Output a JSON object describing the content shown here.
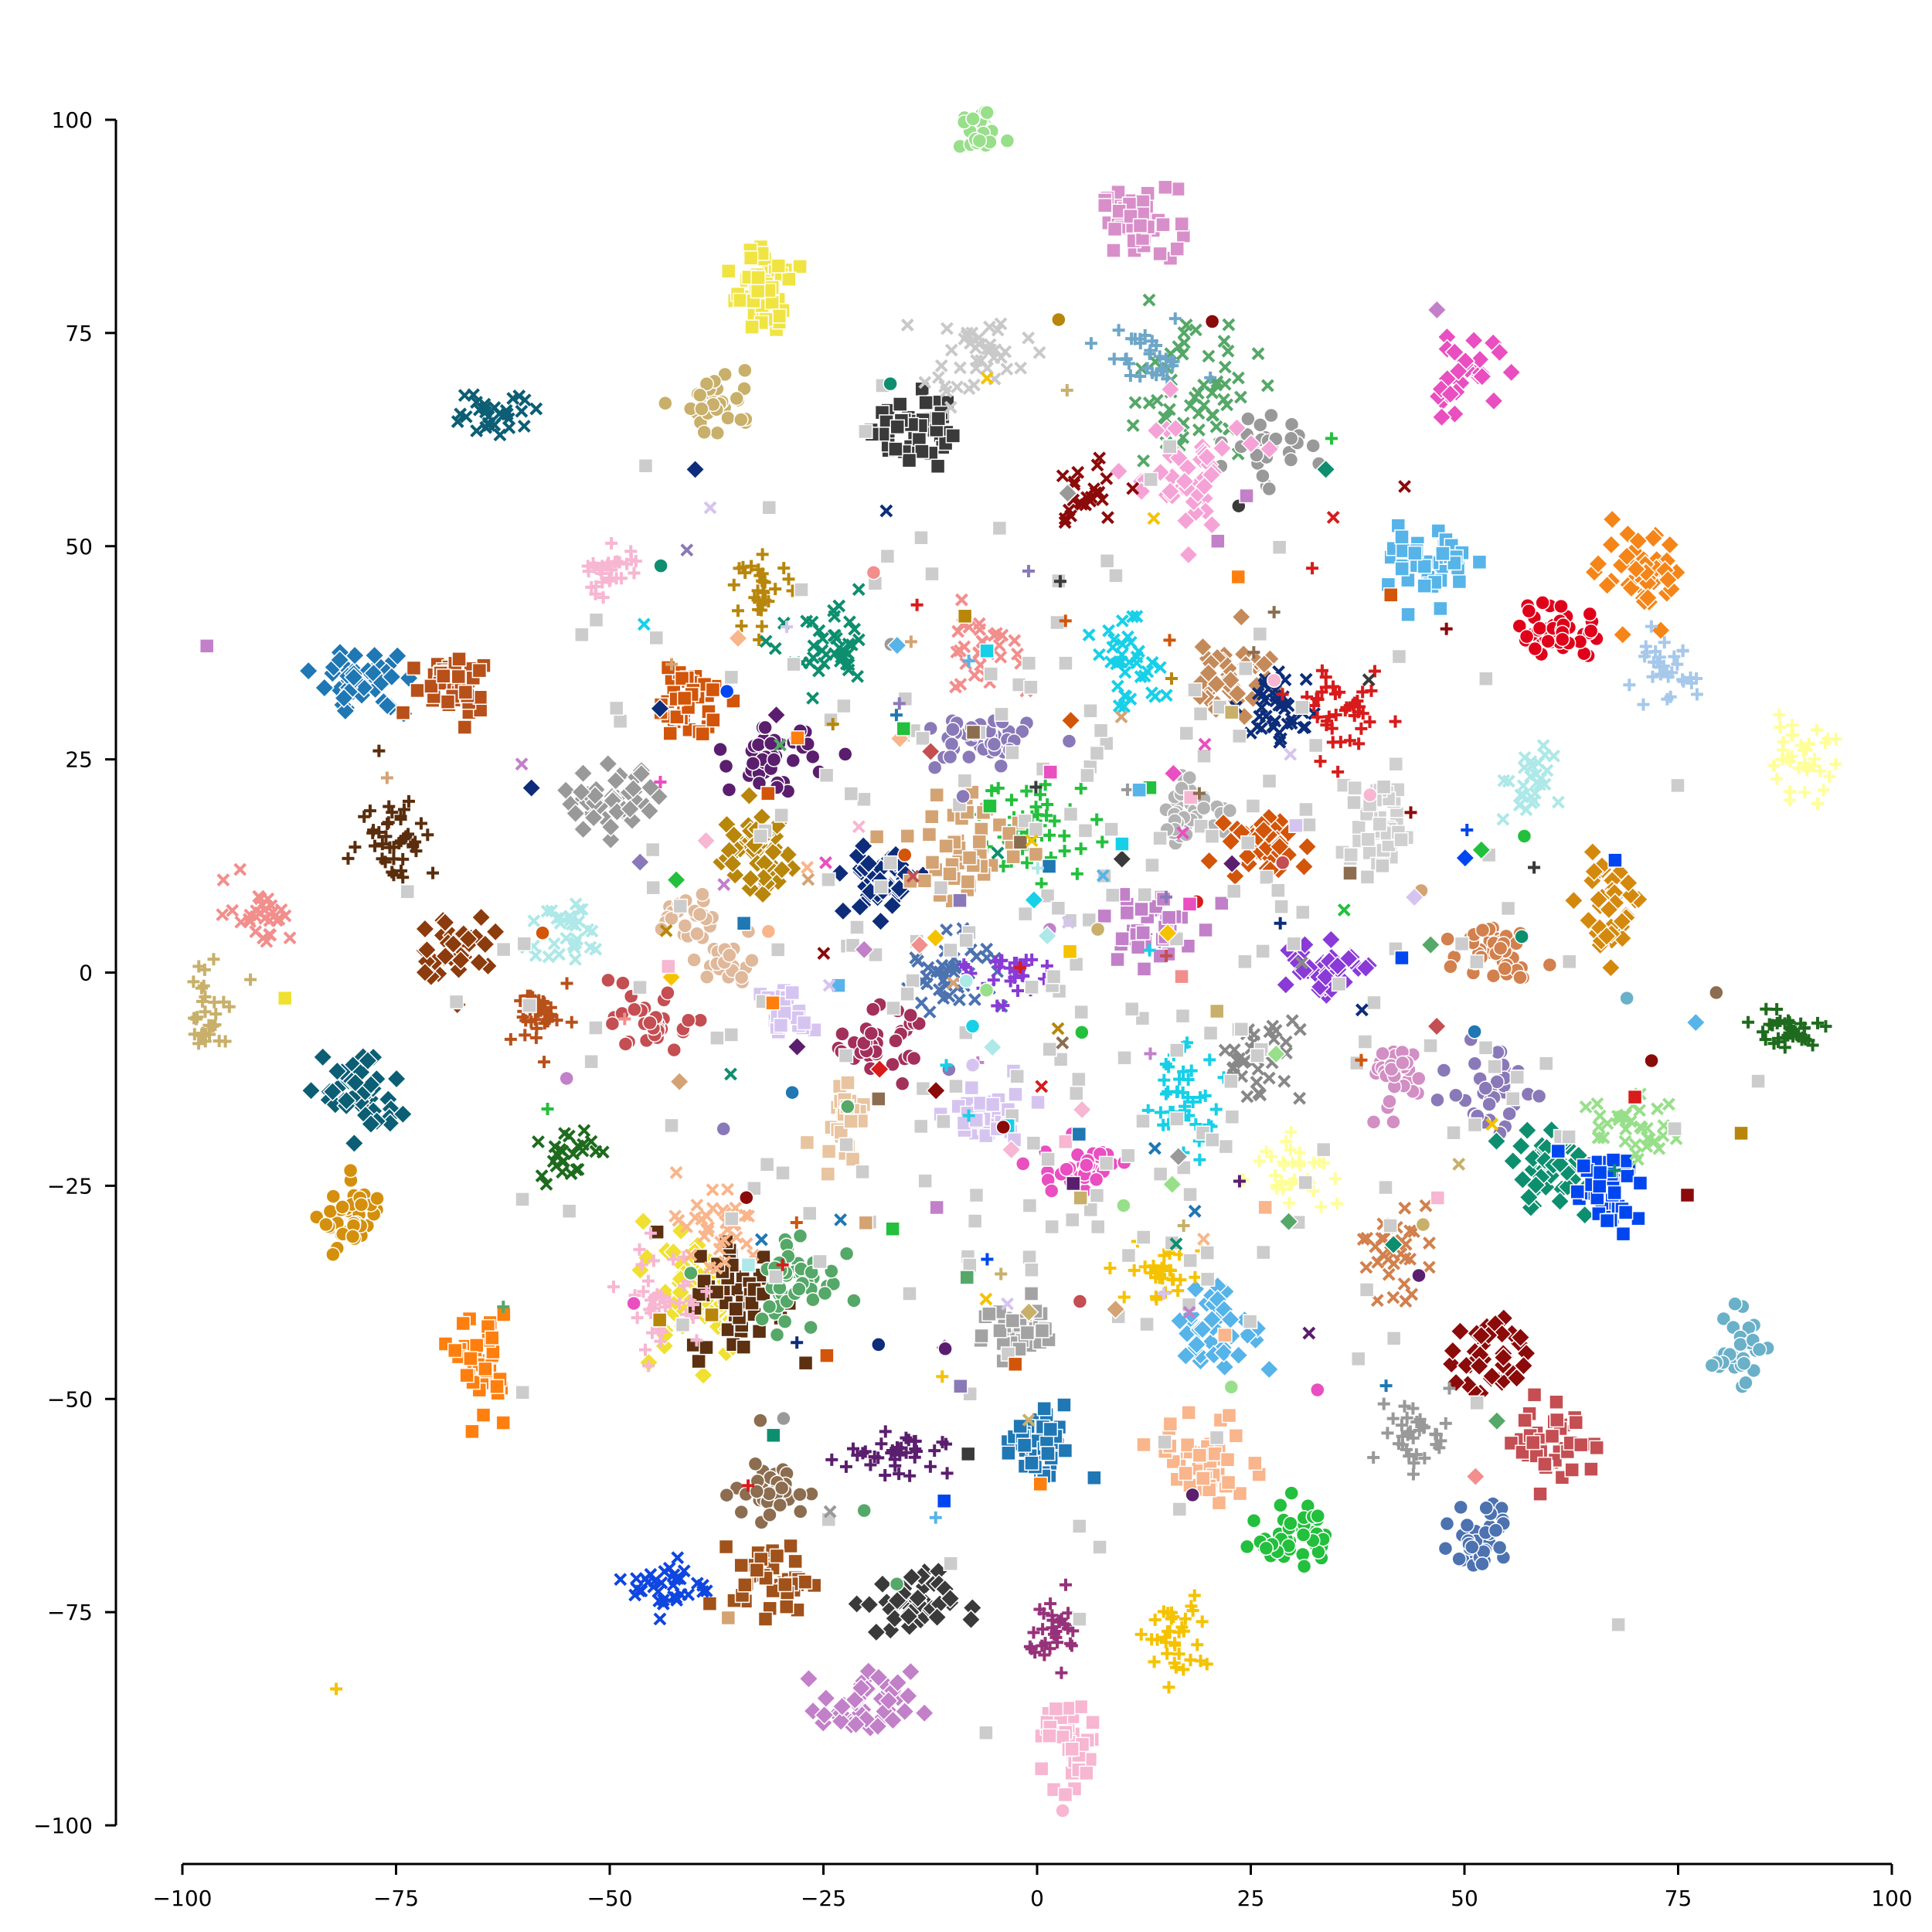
{
  "chart_data": {
    "type": "scatter",
    "title": "",
    "xlabel": "",
    "ylabel": "",
    "xlim": [
      -100,
      100
    ],
    "ylim": [
      -100,
      100
    ],
    "x_ticks": [
      -100,
      -75,
      -50,
      -25,
      0,
      25,
      50,
      75,
      100
    ],
    "y_ticks": [
      -100,
      -75,
      -50,
      -25,
      0,
      25,
      50,
      75,
      100
    ],
    "x_tick_labels": [
      "−100",
      "−75",
      "−50",
      "−25",
      "0",
      "25",
      "50",
      "75",
      "100"
    ],
    "y_tick_labels": [
      "−100",
      "−75",
      "−50",
      "−25",
      "0",
      "25",
      "50",
      "75",
      "100"
    ],
    "grid": false,
    "legend": "none",
    "clusters": [
      {
        "x": -7,
        "y": 99,
        "sx": 1.6,
        "sy": 1.4,
        "n": 40,
        "marker": "circle",
        "color": "#98df8a"
      },
      {
        "x": 12,
        "y": 88,
        "sx": 2.2,
        "sy": 2.0,
        "n": 45,
        "marker": "square",
        "color": "#d88fc9"
      },
      {
        "x": -32,
        "y": 80,
        "sx": 1.6,
        "sy": 2.4,
        "n": 50,
        "marker": "square",
        "color": "#f0e442"
      },
      {
        "x": -37,
        "y": 67,
        "sx": 2.0,
        "sy": 1.8,
        "n": 35,
        "marker": "circle",
        "color": "#c8b06b"
      },
      {
        "x": -63,
        "y": 66,
        "sx": 2.8,
        "sy": 1.5,
        "n": 30,
        "marker": "x",
        "color": "#0b5e74"
      },
      {
        "x": -15,
        "y": 64,
        "sx": 2.2,
        "sy": 2.4,
        "n": 45,
        "marker": "square",
        "color": "#3a3a3a"
      },
      {
        "x": -7,
        "y": 72,
        "sx": 3.0,
        "sy": 2.4,
        "n": 40,
        "marker": "x",
        "color": "#c9c9c9"
      },
      {
        "x": 18,
        "y": 68,
        "sx": 4.0,
        "sy": 4.0,
        "n": 55,
        "marker": "x",
        "color": "#55a868"
      },
      {
        "x": 13,
        "y": 72,
        "sx": 2.8,
        "sy": 2.0,
        "n": 30,
        "marker": "plus",
        "color": "#6ea6c7"
      },
      {
        "x": 27,
        "y": 62,
        "sx": 2.2,
        "sy": 2.0,
        "n": 30,
        "marker": "circle",
        "color": "#999999"
      },
      {
        "x": 17,
        "y": 58,
        "sx": 3.5,
        "sy": 3.5,
        "n": 45,
        "marker": "diamond",
        "color": "#f5a3d6"
      },
      {
        "x": 5,
        "y": 56,
        "sx": 2.4,
        "sy": 2.4,
        "n": 25,
        "marker": "x",
        "color": "#8b0a0a"
      },
      {
        "x": 50,
        "y": 70,
        "sx": 2.2,
        "sy": 2.0,
        "n": 30,
        "marker": "diamond",
        "color": "#e94fc0"
      },
      {
        "x": 46,
        "y": 48,
        "sx": 2.2,
        "sy": 2.0,
        "n": 45,
        "marker": "square",
        "color": "#56b4e9"
      },
      {
        "x": 61,
        "y": 40,
        "sx": 2.5,
        "sy": 1.6,
        "n": 45,
        "marker": "circle",
        "color": "#e0001a"
      },
      {
        "x": 71,
        "y": 46,
        "sx": 2.5,
        "sy": 2.5,
        "n": 45,
        "marker": "diamond",
        "color": "#f58518"
      },
      {
        "x": 73,
        "y": 35,
        "sx": 2.0,
        "sy": 2.0,
        "n": 30,
        "marker": "plus",
        "color": "#a6c8ea"
      },
      {
        "x": 89,
        "y": 25,
        "sx": 2.2,
        "sy": 2.0,
        "n": 35,
        "marker": "plus",
        "color": "#ffff99"
      },
      {
        "x": -50,
        "y": 47,
        "sx": 1.8,
        "sy": 1.6,
        "n": 30,
        "marker": "plus",
        "color": "#f7b6d2"
      },
      {
        "x": -32,
        "y": 45,
        "sx": 1.6,
        "sy": 1.8,
        "n": 30,
        "marker": "plus",
        "color": "#b8860b"
      },
      {
        "x": -79,
        "y": 34,
        "sx": 2.6,
        "sy": 1.8,
        "n": 45,
        "marker": "diamond",
        "color": "#1f77b4"
      },
      {
        "x": -68,
        "y": 34,
        "sx": 2.6,
        "sy": 2.0,
        "n": 45,
        "marker": "square",
        "color": "#b8501a"
      },
      {
        "x": -75,
        "y": 16,
        "sx": 2.2,
        "sy": 2.4,
        "n": 40,
        "marker": "plus",
        "color": "#5a2d0c"
      },
      {
        "x": -91,
        "y": 7,
        "sx": 2.0,
        "sy": 1.8,
        "n": 30,
        "marker": "x",
        "color": "#f28e8c"
      },
      {
        "x": -68,
        "y": 3,
        "sx": 2.2,
        "sy": 2.0,
        "n": 40,
        "marker": "diamond",
        "color": "#8c3b0c"
      },
      {
        "x": -97,
        "y": -5,
        "sx": 2.0,
        "sy": 2.4,
        "n": 35,
        "marker": "plus",
        "color": "#c8b06b"
      },
      {
        "x": -79,
        "y": -14,
        "sx": 2.2,
        "sy": 2.6,
        "n": 45,
        "marker": "diamond",
        "color": "#0b5e74"
      },
      {
        "x": -80,
        "y": -29,
        "sx": 1.8,
        "sy": 2.2,
        "n": 40,
        "marker": "circle",
        "color": "#d4900d"
      },
      {
        "x": -65,
        "y": -46,
        "sx": 1.4,
        "sy": 2.8,
        "n": 40,
        "marker": "square",
        "color": "#ff7f0e"
      },
      {
        "x": -41,
        "y": 32,
        "sx": 2.0,
        "sy": 2.0,
        "n": 45,
        "marker": "square",
        "color": "#d2550a"
      },
      {
        "x": -50,
        "y": 20,
        "sx": 2.8,
        "sy": 1.8,
        "n": 45,
        "marker": "diamond",
        "color": "#999999"
      },
      {
        "x": -31,
        "y": 25,
        "sx": 2.4,
        "sy": 1.8,
        "n": 45,
        "marker": "circle",
        "color": "#5b1e6e"
      },
      {
        "x": -33,
        "y": 14,
        "sx": 2.4,
        "sy": 2.4,
        "n": 45,
        "marker": "diamond",
        "color": "#b8860b"
      },
      {
        "x": -24,
        "y": 37,
        "sx": 2.6,
        "sy": 2.4,
        "n": 40,
        "marker": "x",
        "color": "#0d8f6f"
      },
      {
        "x": -18,
        "y": 11,
        "sx": 2.2,
        "sy": 2.2,
        "n": 45,
        "marker": "diamond",
        "color": "#0d2d7a"
      },
      {
        "x": -7,
        "y": 27,
        "sx": 3.0,
        "sy": 1.6,
        "n": 45,
        "marker": "circle",
        "color": "#8a79b8"
      },
      {
        "x": -7,
        "y": 38,
        "sx": 2.4,
        "sy": 2.4,
        "n": 30,
        "marker": "x",
        "color": "#f28e8c"
      },
      {
        "x": 11,
        "y": 36,
        "sx": 2.2,
        "sy": 2.4,
        "n": 35,
        "marker": "x",
        "color": "#17d0e8"
      },
      {
        "x": 0,
        "y": 17,
        "sx": 3.5,
        "sy": 3.0,
        "n": 45,
        "marker": "plus",
        "color": "#22c03c"
      },
      {
        "x": -8,
        "y": 15,
        "sx": 3.5,
        "sy": 3.5,
        "n": 45,
        "marker": "square",
        "color": "#d4a373"
      },
      {
        "x": 23,
        "y": 35,
        "sx": 2.2,
        "sy": 2.6,
        "n": 40,
        "marker": "diamond",
        "color": "#c58a5a"
      },
      {
        "x": 28,
        "y": 31,
        "sx": 2.4,
        "sy": 2.0,
        "n": 40,
        "marker": "x",
        "color": "#0d2d7a"
      },
      {
        "x": 36,
        "y": 30,
        "sx": 2.4,
        "sy": 2.2,
        "n": 40,
        "marker": "plus",
        "color": "#d81b1b"
      },
      {
        "x": 40,
        "y": 17,
        "sx": 2.2,
        "sy": 3.0,
        "n": 40,
        "marker": "square",
        "color": "#d0d0d0"
      },
      {
        "x": 18,
        "y": 19,
        "sx": 2.2,
        "sy": 1.6,
        "n": 40,
        "marker": "circle",
        "color": "#b3b3b3"
      },
      {
        "x": 27,
        "y": 15,
        "sx": 2.2,
        "sy": 2.0,
        "n": 40,
        "marker": "diamond",
        "color": "#d2550a"
      },
      {
        "x": 57,
        "y": 22,
        "sx": 1.8,
        "sy": 2.0,
        "n": 30,
        "marker": "x",
        "color": "#aee8e8"
      },
      {
        "x": 67,
        "y": 8,
        "sx": 1.8,
        "sy": 2.6,
        "n": 40,
        "marker": "diamond",
        "color": "#d4890d"
      },
      {
        "x": 54,
        "y": 3,
        "sx": 2.2,
        "sy": 1.8,
        "n": 40,
        "marker": "circle",
        "color": "#d2804d"
      },
      {
        "x": 33,
        "y": 1,
        "sx": 2.2,
        "sy": 1.8,
        "n": 35,
        "marker": "diamond",
        "color": "#8a3ad6"
      },
      {
        "x": 13,
        "y": 5,
        "sx": 2.6,
        "sy": 2.6,
        "n": 40,
        "marker": "square",
        "color": "#c280c9"
      },
      {
        "x": 87,
        "y": -7,
        "sx": 2.6,
        "sy": 1.2,
        "n": 35,
        "marker": "plus",
        "color": "#1e6b1e"
      },
      {
        "x": -55,
        "y": 5,
        "sx": 2.6,
        "sy": 2.0,
        "n": 30,
        "marker": "x",
        "color": "#aee8e8"
      },
      {
        "x": -41,
        "y": 6,
        "sx": 1.4,
        "sy": 1.8,
        "n": 25,
        "marker": "circle",
        "color": "#e0b89a"
      },
      {
        "x": -57,
        "y": -5,
        "sx": 2.0,
        "sy": 2.0,
        "n": 35,
        "marker": "plus",
        "color": "#b8501a"
      },
      {
        "x": -45,
        "y": -6,
        "sx": 2.2,
        "sy": 1.6,
        "n": 35,
        "marker": "circle",
        "color": "#c44e52"
      },
      {
        "x": -19,
        "y": -8,
        "sx": 2.2,
        "sy": 1.8,
        "n": 40,
        "marker": "circle",
        "color": "#a3305a"
      },
      {
        "x": -10,
        "y": 0,
        "sx": 3.0,
        "sy": 2.2,
        "n": 40,
        "marker": "x",
        "color": "#4c72b0"
      },
      {
        "x": -3,
        "y": 0,
        "sx": 2.4,
        "sy": 1.6,
        "n": 30,
        "marker": "plus",
        "color": "#8a3ad6"
      },
      {
        "x": -6,
        "y": -17,
        "sx": 2.2,
        "sy": 2.0,
        "n": 35,
        "marker": "square",
        "color": "#d6c4f0"
      },
      {
        "x": 17,
        "y": -15,
        "sx": 2.4,
        "sy": 3.0,
        "n": 40,
        "marker": "plus",
        "color": "#17d0e8"
      },
      {
        "x": 5,
        "y": -23,
        "sx": 2.2,
        "sy": 1.6,
        "n": 35,
        "marker": "circle",
        "color": "#e94fc0"
      },
      {
        "x": 26,
        "y": -10,
        "sx": 2.6,
        "sy": 2.6,
        "n": 35,
        "marker": "x",
        "color": "#888888"
      },
      {
        "x": 30,
        "y": -23,
        "sx": 2.2,
        "sy": 1.8,
        "n": 35,
        "marker": "plus",
        "color": "#ffff99"
      },
      {
        "x": 42,
        "y": -12,
        "sx": 2.0,
        "sy": 2.0,
        "n": 35,
        "marker": "circle",
        "color": "#d28fc4"
      },
      {
        "x": 53,
        "y": -14,
        "sx": 2.2,
        "sy": 2.4,
        "n": 40,
        "marker": "circle",
        "color": "#8a79b8"
      },
      {
        "x": 60,
        "y": -23,
        "sx": 2.6,
        "sy": 2.4,
        "n": 45,
        "marker": "diamond",
        "color": "#0d8f6f"
      },
      {
        "x": 66,
        "y": -26,
        "sx": 2.4,
        "sy": 2.2,
        "n": 40,
        "marker": "square",
        "color": "#0046f0"
      },
      {
        "x": 70,
        "y": -18,
        "sx": 2.4,
        "sy": 2.0,
        "n": 35,
        "marker": "x",
        "color": "#98df8a"
      },
      {
        "x": 82,
        "y": -44,
        "sx": 1.4,
        "sy": 2.0,
        "n": 35,
        "marker": "circle",
        "color": "#6ab0c9"
      },
      {
        "x": 41,
        "y": -33,
        "sx": 2.2,
        "sy": 2.6,
        "n": 30,
        "marker": "x",
        "color": "#d2804d"
      },
      {
        "x": 53,
        "y": -45,
        "sx": 2.0,
        "sy": 2.6,
        "n": 40,
        "marker": "diamond",
        "color": "#8b0a0a"
      },
      {
        "x": 61,
        "y": -55,
        "sx": 2.4,
        "sy": 2.4,
        "n": 40,
        "marker": "square",
        "color": "#c44e52"
      },
      {
        "x": 44,
        "y": -54,
        "sx": 2.2,
        "sy": 2.2,
        "n": 35,
        "marker": "plus",
        "color": "#999999"
      },
      {
        "x": 52,
        "y": -66,
        "sx": 1.8,
        "sy": 2.2,
        "n": 35,
        "marker": "circle",
        "color": "#4c72b0"
      },
      {
        "x": 30,
        "y": -66,
        "sx": 2.0,
        "sy": 2.0,
        "n": 40,
        "marker": "circle",
        "color": "#22c03c"
      },
      {
        "x": 20,
        "y": -57,
        "sx": 3.0,
        "sy": 2.4,
        "n": 45,
        "marker": "square",
        "color": "#f9b58b"
      },
      {
        "x": 21,
        "y": -42,
        "sx": 2.6,
        "sy": 2.6,
        "n": 40,
        "marker": "diamond",
        "color": "#56b4e9"
      },
      {
        "x": 15,
        "y": -35,
        "sx": 2.2,
        "sy": 1.8,
        "n": 30,
        "marker": "plus",
        "color": "#f5c200"
      },
      {
        "x": 16,
        "y": -78,
        "sx": 2.0,
        "sy": 2.4,
        "n": 35,
        "marker": "plus",
        "color": "#f5c200"
      },
      {
        "x": 2,
        "y": -77,
        "sx": 1.6,
        "sy": 2.2,
        "n": 30,
        "marker": "plus",
        "color": "#96327a"
      },
      {
        "x": 4,
        "y": -91,
        "sx": 1.6,
        "sy": 2.6,
        "n": 35,
        "marker": "square",
        "color": "#f7b6d2"
      },
      {
        "x": 0,
        "y": -56,
        "sx": 2.2,
        "sy": 2.4,
        "n": 40,
        "marker": "square",
        "color": "#1f77b4"
      },
      {
        "x": -2,
        "y": -42,
        "sx": 2.2,
        "sy": 1.8,
        "n": 35,
        "marker": "square",
        "color": "#a3a3a3"
      },
      {
        "x": -17,
        "y": -57,
        "sx": 3.0,
        "sy": 1.6,
        "n": 35,
        "marker": "plus",
        "color": "#5b1e6e"
      },
      {
        "x": -15,
        "y": -74,
        "sx": 2.6,
        "sy": 1.8,
        "n": 40,
        "marker": "diamond",
        "color": "#3a3a3a"
      },
      {
        "x": -20,
        "y": -86,
        "sx": 2.6,
        "sy": 2.0,
        "n": 45,
        "marker": "diamond",
        "color": "#c280c9"
      },
      {
        "x": -31,
        "y": -61,
        "sx": 2.2,
        "sy": 1.6,
        "n": 40,
        "marker": "circle",
        "color": "#8c6d4f"
      },
      {
        "x": -31,
        "y": -71,
        "sx": 2.2,
        "sy": 2.0,
        "n": 40,
        "marker": "square",
        "color": "#a0521a"
      },
      {
        "x": -43,
        "y": -72,
        "sx": 2.2,
        "sy": 1.6,
        "n": 35,
        "marker": "x",
        "color": "#1046e0"
      },
      {
        "x": -40,
        "y": -37,
        "sx": 3.2,
        "sy": 4.0,
        "n": 65,
        "marker": "diamond",
        "color": "#f0e030"
      },
      {
        "x": -35,
        "y": -38,
        "sx": 2.8,
        "sy": 3.6,
        "n": 55,
        "marker": "square",
        "color": "#5c3010"
      },
      {
        "x": -28,
        "y": -36,
        "sx": 2.4,
        "sy": 3.0,
        "n": 45,
        "marker": "circle",
        "color": "#55a868"
      },
      {
        "x": -44,
        "y": -38,
        "sx": 2.4,
        "sy": 3.0,
        "n": 40,
        "marker": "plus",
        "color": "#f7b6d2"
      },
      {
        "x": -38,
        "y": -30,
        "sx": 3.0,
        "sy": 3.0,
        "n": 35,
        "marker": "x",
        "color": "#f9b58b"
      },
      {
        "x": -55,
        "y": -21,
        "sx": 1.6,
        "sy": 1.6,
        "n": 25,
        "marker": "x",
        "color": "#1e6b1e"
      },
      {
        "x": -23,
        "y": -17,
        "sx": 1.4,
        "sy": 2.2,
        "n": 25,
        "marker": "square",
        "color": "#e8c4a0"
      },
      {
        "x": -29,
        "y": -5,
        "sx": 1.4,
        "sy": 1.6,
        "n": 20,
        "marker": "square",
        "color": "#d6c4f0"
      },
      {
        "x": -36,
        "y": 1,
        "sx": 1.4,
        "sy": 1.4,
        "n": 20,
        "marker": "circle",
        "color": "#e0b89a"
      },
      {
        "x": 0,
        "y": 0,
        "sx": 30,
        "sy": 30,
        "n": 260,
        "marker": "square",
        "color": "#cccccc"
      },
      {
        "x": 0,
        "y": 0,
        "sx": 32,
        "sy": 32,
        "n": 260,
        "marker": "mixed",
        "color": "mixed"
      }
    ],
    "outliers": [
      {
        "x": -82,
        "y": -84,
        "marker": "plus",
        "color": "#f5c200"
      },
      {
        "x": -88,
        "y": -3,
        "marker": "square",
        "color": "#f0e030"
      },
      {
        "x": -40,
        "y": 59,
        "marker": "diamond",
        "color": "#0d2d7a"
      },
      {
        "x": 43,
        "y": 57,
        "marker": "x",
        "color": "#8b0a0a"
      },
      {
        "x": -77,
        "y": 26,
        "marker": "plus",
        "color": "#5a2d0c"
      },
      {
        "x": 69,
        "y": -3,
        "marker": "circle",
        "color": "#6ab0c9"
      },
      {
        "x": 57,
        "y": 16,
        "marker": "circle",
        "color": "#22c03c"
      }
    ]
  }
}
